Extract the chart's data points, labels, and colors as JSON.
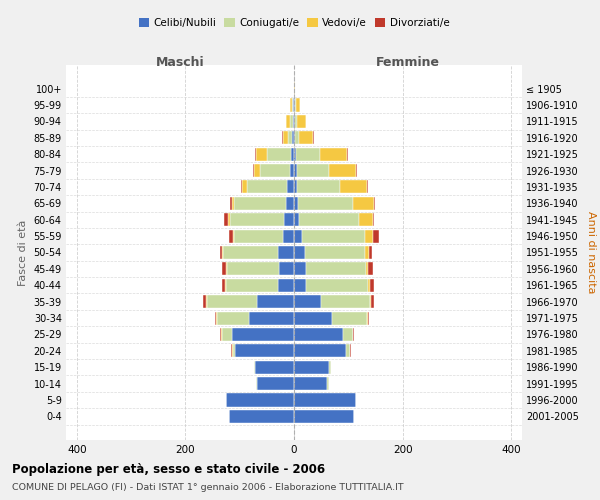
{
  "age_groups": [
    "0-4",
    "5-9",
    "10-14",
    "15-19",
    "20-24",
    "25-29",
    "30-34",
    "35-39",
    "40-44",
    "45-49",
    "50-54",
    "55-59",
    "60-64",
    "65-69",
    "70-74",
    "75-79",
    "80-84",
    "85-89",
    "90-94",
    "95-99",
    "100+"
  ],
  "birth_years": [
    "2001-2005",
    "1996-2000",
    "1991-1995",
    "1986-1990",
    "1981-1985",
    "1976-1980",
    "1971-1975",
    "1966-1970",
    "1961-1965",
    "1956-1960",
    "1951-1955",
    "1946-1950",
    "1941-1945",
    "1936-1940",
    "1931-1935",
    "1926-1930",
    "1921-1925",
    "1916-1920",
    "1911-1915",
    "1906-1910",
    "≤ 1905"
  ],
  "colors": {
    "celibi": "#4472C4",
    "coniugati": "#c8dba0",
    "vedovi": "#f5c842",
    "divorziati": "#c0392b"
  },
  "maschi": {
    "celibi": [
      120,
      125,
      68,
      72,
      108,
      115,
      82,
      68,
      30,
      28,
      30,
      20,
      18,
      15,
      12,
      8,
      5,
      3,
      2,
      1,
      0
    ],
    "coniugati": [
      0,
      0,
      2,
      2,
      5,
      18,
      60,
      92,
      95,
      95,
      100,
      90,
      100,
      95,
      75,
      55,
      45,
      8,
      5,
      2,
      0
    ],
    "vedovi": [
      0,
      0,
      0,
      0,
      2,
      2,
      1,
      2,
      2,
      2,
      2,
      2,
      3,
      5,
      8,
      10,
      20,
      10,
      8,
      4,
      0
    ],
    "divorziati": [
      0,
      0,
      0,
      0,
      1,
      1,
      2,
      5,
      5,
      8,
      5,
      8,
      8,
      2,
      2,
      2,
      1,
      1,
      0,
      0,
      0
    ]
  },
  "femmine": {
    "celibi": [
      110,
      115,
      60,
      65,
      95,
      90,
      70,
      50,
      22,
      22,
      20,
      15,
      10,
      8,
      5,
      5,
      3,
      2,
      1,
      1,
      0
    ],
    "coniugati": [
      0,
      0,
      4,
      4,
      8,
      18,
      65,
      90,
      115,
      110,
      110,
      115,
      110,
      100,
      80,
      60,
      45,
      8,
      4,
      2,
      0
    ],
    "vedovi": [
      0,
      0,
      0,
      0,
      1,
      1,
      1,
      2,
      3,
      5,
      8,
      15,
      25,
      40,
      50,
      50,
      50,
      25,
      18,
      8,
      1
    ],
    "divorziati": [
      0,
      0,
      0,
      0,
      1,
      1,
      3,
      5,
      8,
      8,
      5,
      12,
      2,
      2,
      2,
      1,
      1,
      1,
      0,
      0,
      0
    ]
  },
  "title": "Popolazione per età, sesso e stato civile - 2006",
  "subtitle": "COMUNE DI PELAGO (FI) - Dati ISTAT 1° gennaio 2006 - Elaborazione TUTTITALIA.IT",
  "xlabel_left": "Maschi",
  "xlabel_right": "Femmine",
  "ylabel_left": "Fasce di età",
  "ylabel_right": "Anni di nascita",
  "xlim": 420,
  "background_color": "#f0f0f0",
  "plot_bg": "#ffffff"
}
